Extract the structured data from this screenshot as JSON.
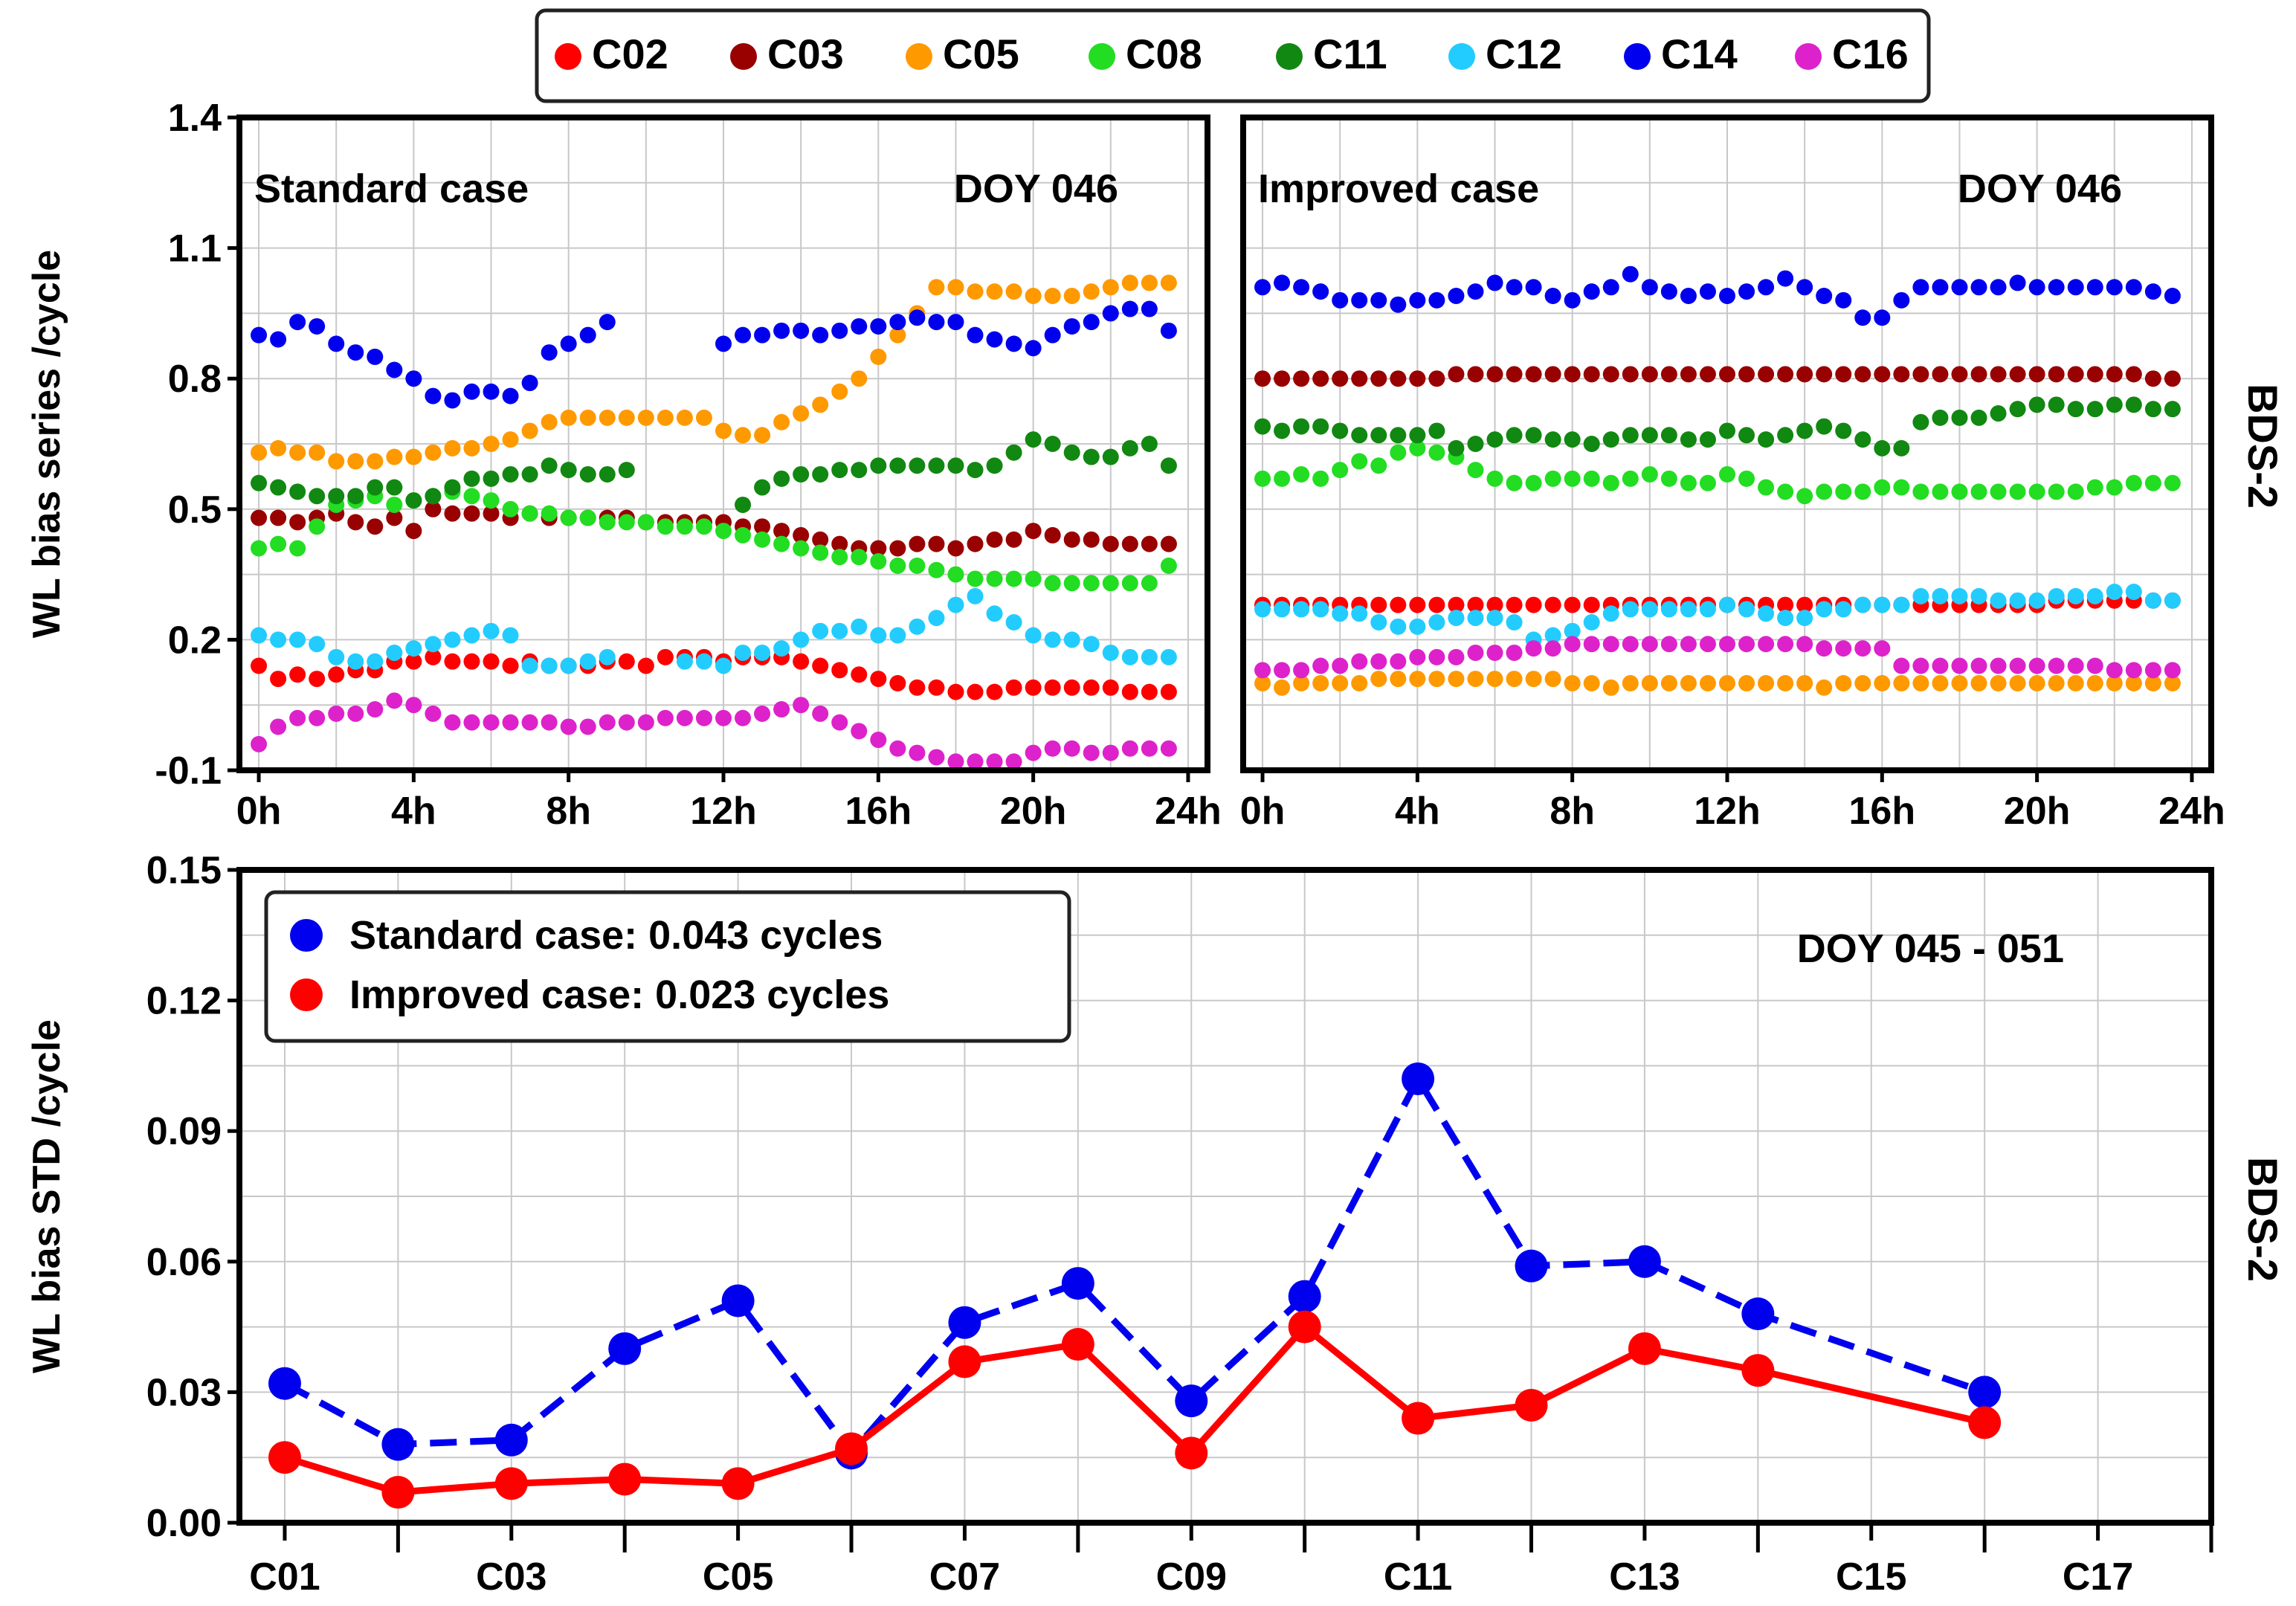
{
  "chart_data": [
    {
      "type": "scatter",
      "panel": "standard",
      "title": "",
      "case_label": "Standard case",
      "doy_label": "DOY 046",
      "ylabel": "WL bias series /cycle",
      "xlabel": "",
      "xlim": [
        -0.5,
        24.5
      ],
      "ylim": [
        -0.1,
        1.4
      ],
      "xticks": [
        0,
        4,
        8,
        12,
        16,
        20,
        24
      ],
      "xtick_labels": [
        "0h",
        "4h",
        "8h",
        "12h",
        "16h",
        "20h",
        "24h"
      ],
      "yticks": [
        -0.1,
        0.2,
        0.5,
        0.8,
        1.1,
        1.4
      ],
      "ytick_labels": [
        "-0.1",
        "0.2",
        "0.5",
        "0.8",
        "1.1",
        "1.4"
      ],
      "x_step": 0.5,
      "series": [
        {
          "name": "C02",
          "color": "#ff0000",
          "values": [
            0.14,
            0.11,
            0.12,
            0.11,
            0.12,
            0.13,
            0.13,
            0.15,
            0.15,
            0.16,
            0.15,
            0.15,
            0.15,
            0.14,
            0.15,
            0.14,
            0.14,
            0.14,
            0.15,
            0.15,
            0.14,
            0.16,
            0.16,
            0.16,
            0.15,
            0.16,
            0.16,
            0.16,
            0.15,
            0.14,
            0.13,
            0.12,
            0.11,
            0.1,
            0.09,
            0.09,
            0.08,
            0.08,
            0.08,
            0.09,
            0.09,
            0.09,
            0.09,
            0.09,
            0.09,
            0.08,
            0.08,
            0.08
          ]
        },
        {
          "name": "C03",
          "color": "#990000",
          "values": [
            0.48,
            0.48,
            0.47,
            0.48,
            0.49,
            0.47,
            0.46,
            0.48,
            0.45,
            0.5,
            0.49,
            0.49,
            0.49,
            0.48,
            0.49,
            0.48,
            0.48,
            0.48,
            0.48,
            0.48,
            0.47,
            0.47,
            0.47,
            0.47,
            0.47,
            0.46,
            0.46,
            0.45,
            0.44,
            0.43,
            0.42,
            0.41,
            0.41,
            0.41,
            0.42,
            0.42,
            0.41,
            0.42,
            0.43,
            0.43,
            0.45,
            0.44,
            0.43,
            0.43,
            0.42,
            0.42,
            0.42,
            0.42
          ]
        },
        {
          "name": "C05",
          "color": "#ff9900",
          "values": [
            0.63,
            0.64,
            0.63,
            0.63,
            0.61,
            0.61,
            0.61,
            0.62,
            0.62,
            0.63,
            0.64,
            0.64,
            0.65,
            0.66,
            0.68,
            0.7,
            0.71,
            0.71,
            0.71,
            0.71,
            0.71,
            0.71,
            0.71,
            0.71,
            0.68,
            0.67,
            0.67,
            0.7,
            0.72,
            0.74,
            0.77,
            0.8,
            0.85,
            0.9,
            0.95,
            1.01,
            1.01,
            1.0,
            1.0,
            1.0,
            0.99,
            0.99,
            0.99,
            1.0,
            1.01,
            1.02,
            1.02,
            1.02
          ]
        },
        {
          "name": "C08",
          "color": "#22dd22",
          "values": [
            0.41,
            0.42,
            0.41,
            0.46,
            0.51,
            0.52,
            0.53,
            0.51,
            0.52,
            0.53,
            0.54,
            0.53,
            0.52,
            0.5,
            0.49,
            0.49,
            0.48,
            0.48,
            0.47,
            0.47,
            0.47,
            0.46,
            0.46,
            0.46,
            0.45,
            0.44,
            0.43,
            0.42,
            0.41,
            0.4,
            0.39,
            0.39,
            0.38,
            0.37,
            0.37,
            0.36,
            0.35,
            0.34,
            0.34,
            0.34,
            0.34,
            0.33,
            0.33,
            0.33,
            0.33,
            0.33,
            0.33,
            0.37
          ]
        },
        {
          "name": "C11",
          "color": "#118811",
          "values": [
            0.56,
            0.55,
            0.54,
            0.53,
            0.53,
            0.53,
            0.55,
            0.55,
            0.52,
            0.53,
            0.55,
            0.57,
            0.57,
            0.58,
            0.58,
            0.6,
            0.59,
            0.58,
            0.58,
            0.59,
            null,
            null,
            null,
            null,
            null,
            0.51,
            0.55,
            0.57,
            0.58,
            0.58,
            0.59,
            0.59,
            0.6,
            0.6,
            0.6,
            0.6,
            0.6,
            0.59,
            0.6,
            0.63,
            0.66,
            0.65,
            0.63,
            0.62,
            0.62,
            0.64,
            0.65,
            0.6
          ]
        },
        {
          "name": "C12",
          "color": "#22ccff",
          "values": [
            0.21,
            0.2,
            0.2,
            0.19,
            0.16,
            0.15,
            0.15,
            0.17,
            0.18,
            0.19,
            0.2,
            0.21,
            0.22,
            0.21,
            0.14,
            0.14,
            0.14,
            0.15,
            0.16,
            null,
            null,
            null,
            0.15,
            0.15,
            0.14,
            0.17,
            0.17,
            0.18,
            0.2,
            0.22,
            0.22,
            0.23,
            0.21,
            0.21,
            0.23,
            0.25,
            0.28,
            0.3,
            0.26,
            0.24,
            0.21,
            0.2,
            0.2,
            0.19,
            0.17,
            0.16,
            0.16,
            0.16
          ]
        },
        {
          "name": "C14",
          "color": "#0000ee",
          "values": [
            0.9,
            0.89,
            0.93,
            0.92,
            0.88,
            0.86,
            0.85,
            0.82,
            0.8,
            0.76,
            0.75,
            0.77,
            0.77,
            0.76,
            0.79,
            0.86,
            0.88,
            0.9,
            0.93,
            null,
            null,
            null,
            null,
            null,
            0.88,
            0.9,
            0.9,
            0.91,
            0.91,
            0.9,
            0.91,
            0.92,
            0.92,
            0.93,
            0.94,
            0.93,
            0.93,
            0.9,
            0.89,
            0.88,
            0.87,
            0.9,
            0.92,
            0.93,
            0.95,
            0.96,
            0.96,
            0.91
          ]
        },
        {
          "name": "C16",
          "color": "#dd22cc",
          "values": [
            -0.04,
            0.0,
            0.02,
            0.02,
            0.03,
            0.03,
            0.04,
            0.06,
            0.05,
            0.03,
            0.01,
            0.01,
            0.01,
            0.01,
            0.01,
            0.01,
            0.0,
            0.0,
            0.01,
            0.01,
            0.01,
            0.02,
            0.02,
            0.02,
            0.02,
            0.02,
            0.03,
            0.04,
            0.05,
            0.03,
            0.01,
            -0.01,
            -0.03,
            -0.05,
            -0.06,
            -0.07,
            -0.08,
            -0.08,
            -0.08,
            -0.08,
            -0.06,
            -0.05,
            -0.05,
            -0.06,
            -0.06,
            -0.05,
            -0.05,
            -0.05
          ]
        }
      ]
    },
    {
      "type": "scatter",
      "panel": "improved",
      "title": "",
      "case_label": "Improved case",
      "doy_label": "DOY 046",
      "side_label": "BDS-2",
      "xlabel": "",
      "xlim": [
        -0.5,
        24.5
      ],
      "ylim": [
        -0.1,
        1.4
      ],
      "xticks": [
        0,
        4,
        8,
        12,
        16,
        20,
        24
      ],
      "xtick_labels": [
        "0h",
        "4h",
        "8h",
        "12h",
        "16h",
        "20h",
        "24h"
      ],
      "x_step": 0.5,
      "series": [
        {
          "name": "C02",
          "color": "#ff0000",
          "values": [
            0.28,
            0.28,
            0.28,
            0.28,
            0.28,
            0.28,
            0.28,
            0.28,
            0.28,
            0.28,
            0.28,
            0.28,
            0.28,
            0.28,
            0.28,
            0.28,
            0.28,
            0.28,
            0.28,
            0.28,
            0.28,
            0.28,
            0.28,
            0.28,
            0.28,
            0.28,
            0.28,
            0.28,
            0.28,
            0.28,
            0.28,
            0.28,
            0.28,
            0.28,
            0.28,
            0.28,
            0.28,
            0.28,
            0.28,
            0.28,
            0.28,
            0.29,
            0.29,
            0.29,
            0.29,
            0.29,
            0.29,
            0.29
          ]
        },
        {
          "name": "C03",
          "color": "#990000",
          "values": [
            0.8,
            0.8,
            0.8,
            0.8,
            0.8,
            0.8,
            0.8,
            0.8,
            0.8,
            0.8,
            0.81,
            0.81,
            0.81,
            0.81,
            0.81,
            0.81,
            0.81,
            0.81,
            0.81,
            0.81,
            0.81,
            0.81,
            0.81,
            0.81,
            0.81,
            0.81,
            0.81,
            0.81,
            0.81,
            0.81,
            0.81,
            0.81,
            0.81,
            0.81,
            0.81,
            0.81,
            0.81,
            0.81,
            0.81,
            0.81,
            0.81,
            0.81,
            0.81,
            0.81,
            0.81,
            0.81,
            0.8,
            0.8
          ]
        },
        {
          "name": "C05",
          "color": "#ff9900",
          "values": [
            0.1,
            0.09,
            0.1,
            0.1,
            0.1,
            0.1,
            0.11,
            0.11,
            0.11,
            0.11,
            0.11,
            0.11,
            0.11,
            0.11,
            0.11,
            0.11,
            0.1,
            0.1,
            0.09,
            0.1,
            0.1,
            0.1,
            0.1,
            0.1,
            0.1,
            0.1,
            0.1,
            0.1,
            0.1,
            0.09,
            0.1,
            0.1,
            0.1,
            0.1,
            0.1,
            0.1,
            0.1,
            0.1,
            0.1,
            0.1,
            0.1,
            0.1,
            0.1,
            0.1,
            0.1,
            0.1,
            0.1,
            0.1
          ]
        },
        {
          "name": "C08",
          "color": "#22dd22",
          "values": [
            0.57,
            0.57,
            0.58,
            0.57,
            0.59,
            0.61,
            0.6,
            0.63,
            0.64,
            0.63,
            0.62,
            0.59,
            0.57,
            0.56,
            0.56,
            0.57,
            0.57,
            0.57,
            0.56,
            0.57,
            0.58,
            0.57,
            0.56,
            0.56,
            0.58,
            0.57,
            0.55,
            0.54,
            0.53,
            0.54,
            0.54,
            0.54,
            0.55,
            0.55,
            0.54,
            0.54,
            0.54,
            0.54,
            0.54,
            0.54,
            0.54,
            0.54,
            0.54,
            0.55,
            0.55,
            0.56,
            0.56,
            0.56
          ]
        },
        {
          "name": "C11",
          "color": "#118811",
          "values": [
            0.69,
            0.68,
            0.69,
            0.69,
            0.68,
            0.67,
            0.67,
            0.67,
            0.67,
            0.68,
            0.64,
            0.65,
            0.66,
            0.67,
            0.67,
            0.66,
            0.66,
            0.65,
            0.66,
            0.67,
            0.67,
            0.67,
            0.66,
            0.66,
            0.68,
            0.67,
            0.66,
            0.67,
            0.68,
            0.69,
            0.68,
            0.66,
            0.64,
            0.64,
            0.7,
            0.71,
            0.71,
            0.71,
            0.72,
            0.73,
            0.74,
            0.74,
            0.73,
            0.73,
            0.74,
            0.74,
            0.73,
            0.73
          ]
        },
        {
          "name": "C12",
          "color": "#22ccff",
          "values": [
            0.27,
            0.27,
            0.27,
            0.27,
            0.26,
            0.26,
            0.24,
            0.23,
            0.23,
            0.24,
            0.25,
            0.25,
            0.25,
            0.24,
            0.2,
            0.21,
            0.22,
            0.24,
            0.26,
            0.27,
            0.27,
            0.27,
            0.27,
            0.27,
            0.28,
            0.27,
            0.26,
            0.25,
            0.25,
            0.27,
            0.27,
            0.28,
            0.28,
            0.28,
            0.3,
            0.3,
            0.3,
            0.3,
            0.29,
            0.29,
            0.29,
            0.3,
            0.3,
            0.3,
            0.31,
            0.31,
            0.29,
            0.29
          ]
        },
        {
          "name": "C14",
          "color": "#0000ee",
          "values": [
            1.01,
            1.02,
            1.01,
            1.0,
            0.98,
            0.98,
            0.98,
            0.97,
            0.98,
            0.98,
            0.99,
            1.0,
            1.02,
            1.01,
            1.01,
            0.99,
            0.98,
            1.0,
            1.01,
            1.04,
            1.01,
            1.0,
            0.99,
            1.0,
            0.99,
            1.0,
            1.01,
            1.03,
            1.01,
            0.99,
            0.98,
            0.94,
            0.94,
            0.98,
            1.01,
            1.01,
            1.01,
            1.01,
            1.01,
            1.02,
            1.01,
            1.01,
            1.01,
            1.01,
            1.01,
            1.01,
            1.0,
            0.99
          ]
        },
        {
          "name": "C16",
          "color": "#dd22cc",
          "values": [
            0.13,
            0.13,
            0.13,
            0.14,
            0.14,
            0.15,
            0.15,
            0.15,
            0.16,
            0.16,
            0.16,
            0.17,
            0.17,
            0.17,
            0.18,
            0.18,
            0.19,
            0.19,
            0.19,
            0.19,
            0.19,
            0.19,
            0.19,
            0.19,
            0.19,
            0.19,
            0.19,
            0.19,
            0.19,
            0.18,
            0.18,
            0.18,
            0.18,
            0.14,
            0.14,
            0.14,
            0.14,
            0.14,
            0.14,
            0.14,
            0.14,
            0.14,
            0.14,
            0.14,
            0.13,
            0.13,
            0.13,
            0.13
          ]
        }
      ]
    },
    {
      "type": "line",
      "panel": "std",
      "title": "",
      "doy_label": "DOY 045 - 051",
      "side_label": "BDS-2",
      "ylabel": "WL bias STD /cycle",
      "xlabel": "",
      "xlim": [
        0.6,
        18.0
      ],
      "ylim": [
        0.0,
        0.15
      ],
      "yticks": [
        0.0,
        0.03,
        0.06,
        0.09,
        0.12,
        0.15
      ],
      "ytick_labels": [
        "0.00",
        "0.03",
        "0.06",
        "0.09",
        "0.12",
        "0.15"
      ],
      "xticks": [
        1,
        3,
        5,
        7,
        9,
        11,
        13,
        15,
        17
      ],
      "xtick_labels": [
        "C01",
        "C03",
        "C05",
        "C07",
        "C09",
        "C11",
        "C13",
        "C15",
        "C17"
      ],
      "x": [
        1,
        2,
        3,
        4,
        5,
        6,
        7,
        8,
        9,
        10,
        11,
        12,
        13,
        14,
        16
      ],
      "series": [
        {
          "name": "Standard case",
          "legend_label": "Standard case: 0.043 cycles",
          "color": "#0000ee",
          "dashed": true,
          "values": [
            0.032,
            0.018,
            0.019,
            0.04,
            0.051,
            0.016,
            0.046,
            0.055,
            0.028,
            0.052,
            0.102,
            0.059,
            0.06,
            0.048,
            0.03
          ]
        },
        {
          "name": "Improved case",
          "legend_label": "Improved case: 0.023 cycles",
          "color": "#ff0000",
          "dashed": false,
          "values": [
            0.015,
            0.007,
            0.009,
            0.01,
            0.009,
            0.017,
            0.037,
            0.041,
            0.016,
            0.045,
            0.024,
            0.027,
            0.04,
            0.035,
            0.023
          ]
        }
      ]
    }
  ],
  "legend_top": [
    "C02",
    "C03",
    "C05",
    "C08",
    "C11",
    "C12",
    "C14",
    "C16"
  ],
  "side_label_top": "BDS-2"
}
